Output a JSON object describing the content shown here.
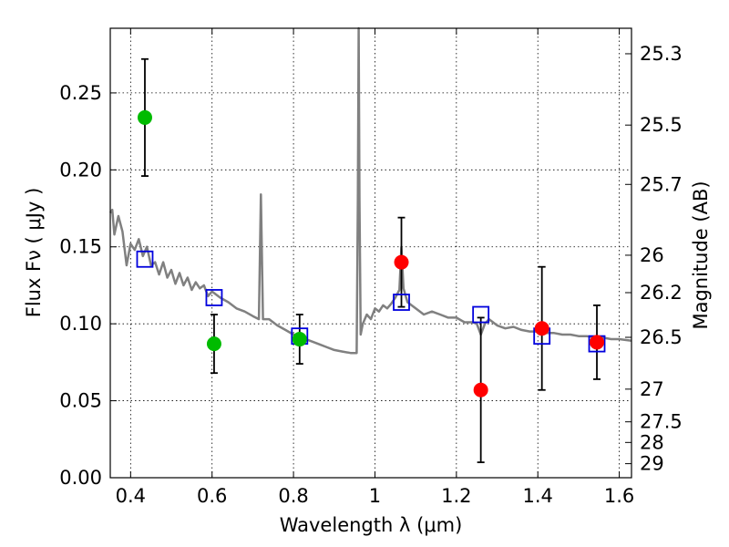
{
  "chart_data": {
    "type": "scatter",
    "xlabel": "Wavelength  λ (μm)",
    "ylabel": "Flux  Fν  ( μJy )",
    "ylabel_right": "Magnitude (AB)",
    "xlim": [
      0.35,
      1.63
    ],
    "ylim": [
      0.0,
      0.292
    ],
    "x_ticks": [
      0.4,
      0.6,
      0.8,
      1.0,
      1.2,
      1.4,
      1.6
    ],
    "x_tick_labels": [
      "0.4",
      "0.6",
      "0.8",
      "1",
      "1.2",
      "1.4",
      "1.6"
    ],
    "y_ticks": [
      0.0,
      0.05,
      0.1,
      0.15,
      0.2,
      0.25
    ],
    "y_tick_labels": [
      "0.00",
      "0.05",
      "0.10",
      "0.15",
      "0.20",
      "0.25"
    ],
    "right_ticks": [
      "25.3",
      "25.5",
      "25.7",
      "26",
      "26.2",
      "26.5",
      "27",
      "27.5",
      "28",
      "29"
    ],
    "grid": true,
    "colors": {
      "model": "#808080",
      "green_points": "#00bb00",
      "red_points": "#ff0000",
      "model_squares": "#0000dd",
      "errorbars": "#000000"
    },
    "model_spectrum": {
      "x": [
        0.35,
        0.355,
        0.36,
        0.37,
        0.38,
        0.39,
        0.4,
        0.41,
        0.42,
        0.43,
        0.44,
        0.45,
        0.46,
        0.47,
        0.48,
        0.49,
        0.5,
        0.51,
        0.52,
        0.53,
        0.54,
        0.55,
        0.56,
        0.57,
        0.58,
        0.59,
        0.6,
        0.62,
        0.64,
        0.66,
        0.68,
        0.7,
        0.715,
        0.72,
        0.725,
        0.74,
        0.76,
        0.78,
        0.8,
        0.82,
        0.84,
        0.86,
        0.88,
        0.9,
        0.92,
        0.94,
        0.955,
        0.958,
        0.96,
        0.962,
        0.965,
        0.97,
        0.98,
        0.99,
        1.0,
        1.01,
        1.02,
        1.03,
        1.04,
        1.05,
        1.06,
        1.065,
        1.07,
        1.08,
        1.1,
        1.12,
        1.14,
        1.16,
        1.18,
        1.2,
        1.22,
        1.24,
        1.25,
        1.26,
        1.27,
        1.28,
        1.3,
        1.32,
        1.34,
        1.36,
        1.38,
        1.4,
        1.42,
        1.44,
        1.46,
        1.48,
        1.5,
        1.52,
        1.54,
        1.56,
        1.58,
        1.6,
        1.63
      ],
      "y": [
        0.172,
        0.174,
        0.158,
        0.17,
        0.16,
        0.138,
        0.152,
        0.148,
        0.155,
        0.144,
        0.15,
        0.138,
        0.14,
        0.132,
        0.14,
        0.13,
        0.135,
        0.126,
        0.133,
        0.125,
        0.13,
        0.122,
        0.127,
        0.123,
        0.125,
        0.118,
        0.121,
        0.117,
        0.114,
        0.11,
        0.108,
        0.105,
        0.103,
        0.184,
        0.103,
        0.103,
        0.099,
        0.096,
        0.093,
        0.091,
        0.089,
        0.087,
        0.085,
        0.083,
        0.082,
        0.081,
        0.081,
        0.18,
        0.292,
        0.18,
        0.093,
        0.1,
        0.106,
        0.103,
        0.11,
        0.108,
        0.112,
        0.11,
        0.113,
        0.117,
        0.122,
        0.15,
        0.123,
        0.114,
        0.11,
        0.106,
        0.108,
        0.106,
        0.104,
        0.104,
        0.101,
        0.101,
        0.1,
        0.093,
        0.1,
        0.103,
        0.099,
        0.097,
        0.098,
        0.096,
        0.095,
        0.095,
        0.094,
        0.094,
        0.093,
        0.093,
        0.092,
        0.092,
        0.091,
        0.091,
        0.09,
        0.09,
        0.089
      ]
    },
    "series": [
      {
        "name": "green",
        "x": [
          0.435,
          0.605,
          0.815
        ],
        "y": [
          0.234,
          0.087,
          0.09
        ],
        "err": [
          0.038,
          0.019,
          0.016
        ]
      },
      {
        "name": "red",
        "x": [
          1.065,
          1.26,
          1.41,
          1.545
        ],
        "y": [
          0.14,
          0.057,
          0.097,
          0.088
        ],
        "err": [
          0.029,
          0.047,
          0.04,
          0.024
        ]
      },
      {
        "name": "model-bands",
        "x": [
          0.435,
          0.605,
          0.815,
          1.065,
          1.26,
          1.41,
          1.545
        ],
        "y": [
          0.142,
          0.117,
          0.092,
          0.114,
          0.106,
          0.092,
          0.087
        ]
      }
    ]
  }
}
